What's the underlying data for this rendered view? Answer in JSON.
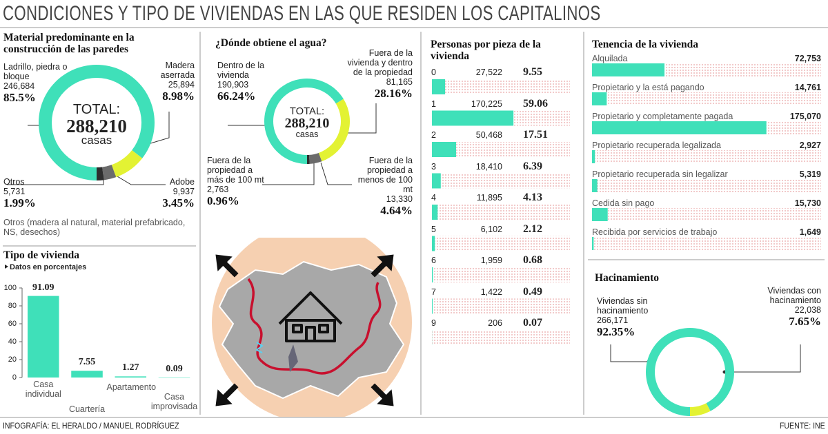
{
  "title": "CONDICIONES Y TIPO DE VIVIENDAS EN LAS QUE RESIDEN LOS CAPITALINOS",
  "credit": "INFOGRAFÍA: EL HERALDO / MANUEL RODRÍGUEZ",
  "source": "FUENTE: INE",
  "chart_data": [
    {
      "type": "donut",
      "title": "Material predominante en la construcción de las paredes",
      "center_label": "TOTAL:",
      "center_value": "288,210",
      "center_unit": "casas",
      "categories": [
        "Ladrillo, piedra o bloque",
        "Madera aserrada",
        "Adobe",
        "Otros"
      ],
      "counts": [
        "246,684",
        "25,894",
        "9,937",
        "5,731"
      ],
      "values": [
        85.5,
        8.98,
        3.45,
        1.99
      ],
      "value_labels": [
        "85.5%",
        "8.98%",
        "3.45%",
        "1.99%"
      ],
      "colors": [
        "#3fe0b9",
        "#e3f233",
        "#6b6b6b",
        "#2e2e2e"
      ],
      "note": "Otros (madera al natural, material prefabricado, NS, desechos)"
    },
    {
      "type": "donut",
      "title": "¿Dónde obtiene el agua?",
      "center_label": "TOTAL:",
      "center_value": "288,210",
      "center_unit": "casas",
      "categories": [
        "Dentro de la vivienda",
        "Fuera de la vivienda y dentro de la propiedad",
        "Fuera de la propiedad a menos de 100 mt",
        "Fuera de la propiedad a más de 100 mt"
      ],
      "counts": [
        "190,903",
        "81,165",
        "13,330",
        "2,763"
      ],
      "values": [
        66.24,
        28.16,
        4.64,
        0.96
      ],
      "value_labels": [
        "66.24%",
        "28.16%",
        "4.64%",
        "0.96%"
      ],
      "colors": [
        "#3fe0b9",
        "#e3f233",
        "#6b6b6b",
        "#2e2e2e"
      ]
    },
    {
      "type": "bar",
      "title": "Tipo de vivienda",
      "subtitle": "Datos en porcentajes",
      "categories": [
        "Casa individual",
        "Cuartería",
        "Apartamento",
        "Casa improvisada"
      ],
      "values": [
        91.09,
        7.55,
        1.27,
        0.09
      ],
      "color": "#3fe0b9",
      "ylim": [
        0,
        100
      ],
      "yticks": [
        0,
        20,
        40,
        60,
        80,
        100
      ]
    },
    {
      "type": "hbar-rows",
      "title": "Personas por pieza de la vivienda",
      "categories": [
        "0",
        "1",
        "2",
        "3",
        "4",
        "5",
        "6",
        "7",
        "9"
      ],
      "counts": [
        "27,522",
        "170,225",
        "50,468",
        "18,410",
        "11,895",
        "6,102",
        "1,959",
        "1,422",
        "206"
      ],
      "values": [
        9.55,
        59.06,
        17.51,
        6.39,
        4.13,
        2.12,
        0.68,
        0.49,
        0.07
      ],
      "xlim": [
        0,
        100
      ],
      "color": "#3fe0b9"
    },
    {
      "type": "hbar-list",
      "title": "Tenencia de la vivienda",
      "categories": [
        "Alquilada",
        "Propietario y la está pagando",
        "Propietario y completamente pagada",
        "Propietario recuperada legalizada",
        "Propietario recuperada sin legalizar",
        "Cedida sin pago",
        "Recibida por servicios de trabajo"
      ],
      "values": [
        72753,
        14761,
        175070,
        2927,
        5319,
        15730,
        1649
      ],
      "value_labels": [
        "72,753",
        "14,761",
        "175,070",
        "2,927",
        "5,319",
        "15,730",
        "1,649"
      ],
      "xlim": [
        0,
        230000
      ],
      "color": "#3fe0b9"
    },
    {
      "type": "donut",
      "title": "Hacinamiento",
      "categories": [
        "Viviendas sin hacinamiento",
        "Viviendas con hacinamiento"
      ],
      "counts": [
        "266,171",
        "22,038"
      ],
      "values": [
        92.35,
        7.65
      ],
      "value_labels": [
        "92.35%",
        "7.65%"
      ],
      "colors": [
        "#3fe0b9",
        "#e3f233"
      ]
    }
  ]
}
